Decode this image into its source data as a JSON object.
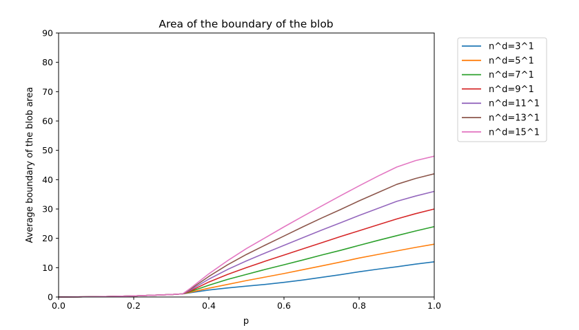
{
  "chart_data": {
    "type": "line",
    "title": "Area of the boundary of the blob",
    "xlabel": "p",
    "ylabel": "Average boundary of the blob area",
    "xlim": [
      0.0,
      1.0
    ],
    "ylim": [
      0,
      90
    ],
    "xticks": [
      "0.0",
      "0.2",
      "0.4",
      "0.6",
      "0.8",
      "1.0"
    ],
    "yticks": [
      "0",
      "10",
      "20",
      "30",
      "40",
      "50",
      "60",
      "70",
      "80",
      "90"
    ],
    "grid": false,
    "legend_position": "outside-right-top",
    "x": [
      0.0,
      0.05,
      0.1,
      0.15,
      0.2,
      0.25,
      0.3,
      0.33,
      0.35,
      0.4,
      0.45,
      0.5,
      0.55,
      0.6,
      0.65,
      0.7,
      0.75,
      0.8,
      0.85,
      0.9,
      0.95,
      1.0
    ],
    "series": [
      {
        "name": "n^d=3^1",
        "color": "#1f77b4",
        "values": [
          0,
          0.05,
          0.12,
          0.22,
          0.38,
          0.6,
          0.85,
          1.05,
          1.45,
          2.4,
          3.1,
          3.7,
          4.3,
          5.0,
          5.8,
          6.7,
          7.6,
          8.6,
          9.5,
          10.3,
          11.2,
          12.0
        ]
      },
      {
        "name": "n^d=5^1",
        "color": "#ff7f0e",
        "values": [
          0,
          0.05,
          0.12,
          0.22,
          0.38,
          0.6,
          0.85,
          1.05,
          1.6,
          3.0,
          4.3,
          5.6,
          6.8,
          8.0,
          9.3,
          10.6,
          11.9,
          13.3,
          14.5,
          15.7,
          16.9,
          18.0
        ]
      },
      {
        "name": "n^d=7^1",
        "color": "#2ca02c",
        "values": [
          0,
          0.05,
          0.12,
          0.22,
          0.38,
          0.6,
          0.85,
          1.05,
          1.8,
          4.0,
          6.0,
          7.7,
          9.4,
          11.0,
          12.6,
          14.3,
          15.9,
          17.6,
          19.3,
          20.9,
          22.5,
          24.0
        ]
      },
      {
        "name": "n^d=9^1",
        "color": "#d62728",
        "values": [
          0,
          0.05,
          0.12,
          0.22,
          0.38,
          0.6,
          0.85,
          1.05,
          2.0,
          5.1,
          7.7,
          10.0,
          12.2,
          14.3,
          16.4,
          18.5,
          20.6,
          22.6,
          24.6,
          26.6,
          28.4,
          30.0
        ]
      },
      {
        "name": "n^d=11^1",
        "color": "#9467bd",
        "values": [
          0,
          0.05,
          0.12,
          0.22,
          0.38,
          0.6,
          0.85,
          1.05,
          2.3,
          6.1,
          9.4,
          12.3,
          15.0,
          17.6,
          20.2,
          22.8,
          25.3,
          27.8,
          30.2,
          32.6,
          34.4,
          36.0
        ]
      },
      {
        "name": "n^d=13^1",
        "color": "#8c564b",
        "values": [
          0,
          0.05,
          0.12,
          0.22,
          0.38,
          0.6,
          0.85,
          1.05,
          2.6,
          7.0,
          11.0,
          14.5,
          17.7,
          20.8,
          23.9,
          26.9,
          29.8,
          32.8,
          35.6,
          38.4,
          40.4,
          42.0
        ]
      },
      {
        "name": "n^d=15^1",
        "color": "#e377c2",
        "values": [
          0,
          0.05,
          0.12,
          0.22,
          0.38,
          0.6,
          0.85,
          1.05,
          2.9,
          7.9,
          12.4,
          16.5,
          20.2,
          23.9,
          27.5,
          31.0,
          34.5,
          37.9,
          41.2,
          44.3,
          46.5,
          48.0
        ]
      }
    ]
  }
}
